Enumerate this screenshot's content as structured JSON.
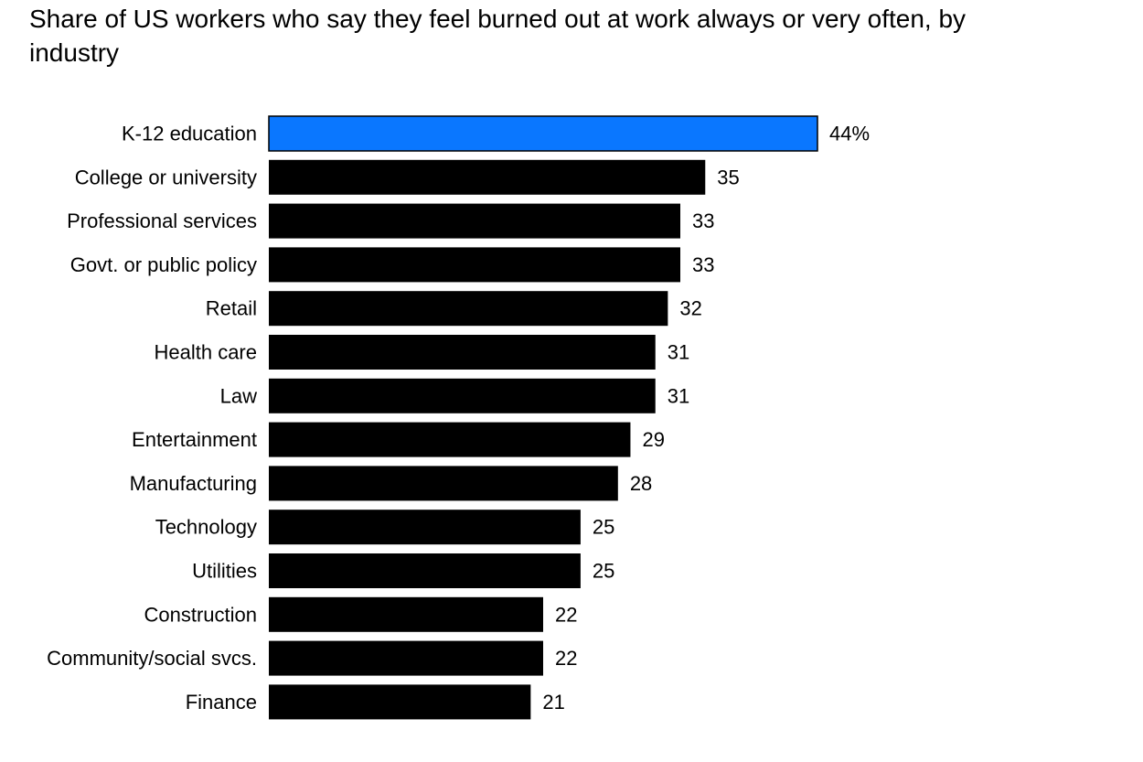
{
  "chart_data": {
    "type": "bar",
    "orientation": "horizontal",
    "title": "Share of US workers who say they feel burned out at work always or very often, by industry",
    "categories": [
      "K-12 education",
      "College or university",
      "Professional services",
      "Govt. or public policy",
      "Retail",
      "Health care",
      "Law",
      "Entertainment",
      "Manufacturing",
      "Technology",
      "Utilities",
      "Construction",
      "Community/social svcs.",
      "Finance"
    ],
    "values": [
      44,
      35,
      33,
      33,
      32,
      31,
      31,
      29,
      28,
      25,
      25,
      22,
      22,
      21
    ],
    "value_labels": [
      "44%",
      "35",
      "33",
      "33",
      "32",
      "31",
      "31",
      "29",
      "28",
      "25",
      "25",
      "22",
      "22",
      "21"
    ],
    "highlight_index": 0,
    "colors": {
      "highlight": "#0a77ff",
      "default": "#000000"
    },
    "xlim": [
      0,
      44
    ],
    "grid": false,
    "legend": "none"
  }
}
